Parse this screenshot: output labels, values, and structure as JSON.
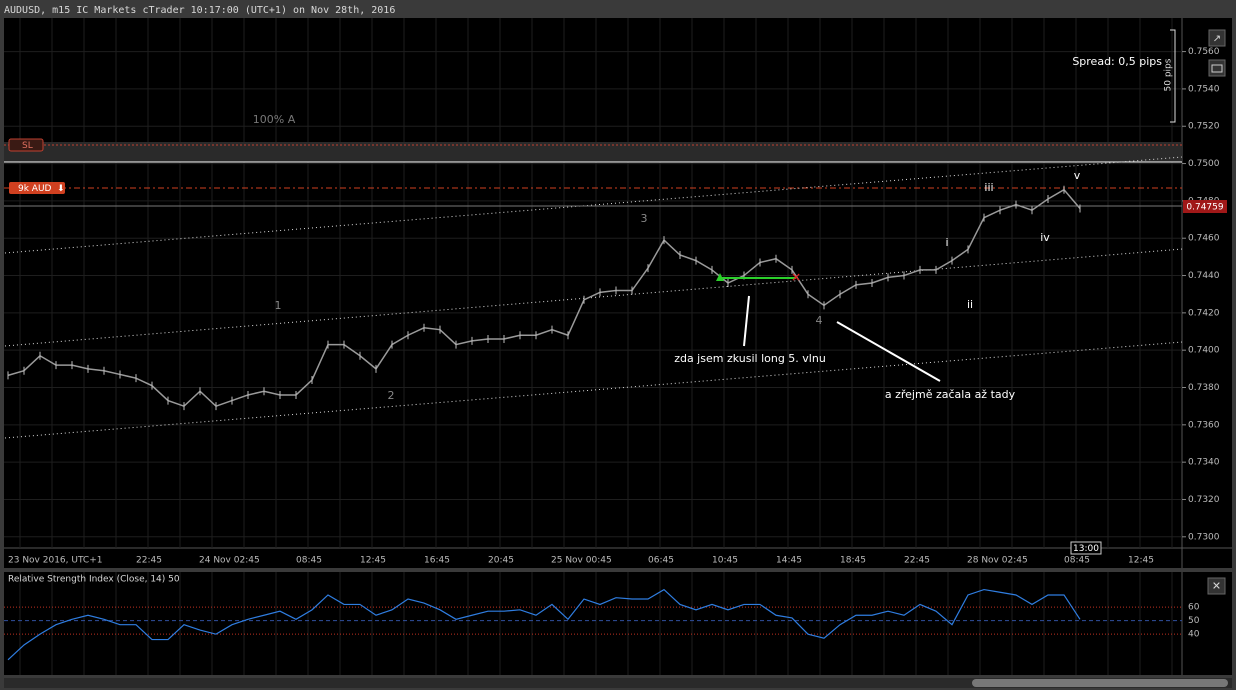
{
  "header": {
    "title": "AUDUSD, m15 IC Markets cTrader 10:17:00 (UTC+1) on Nov 28th, 2016"
  },
  "price_chart": {
    "ylim": [
      0.7294,
      0.7578
    ],
    "yticks": [
      {
        "value": 0.756,
        "label": "0.7560"
      },
      {
        "value": 0.754,
        "label": "0.7540"
      },
      {
        "value": 0.752,
        "label": "0.7520"
      },
      {
        "value": 0.75,
        "label": "0.7500"
      },
      {
        "value": 0.748,
        "label": "0.7480"
      },
      {
        "value": 0.746,
        "label": "0.7460"
      },
      {
        "value": 0.744,
        "label": "0.7440"
      },
      {
        "value": 0.742,
        "label": "0.7420"
      },
      {
        "value": 0.74,
        "label": "0.7400"
      },
      {
        "value": 0.738,
        "label": "0.7380"
      },
      {
        "value": 0.736,
        "label": "0.7360"
      },
      {
        "value": 0.734,
        "label": "0.7340"
      },
      {
        "value": 0.732,
        "label": "0.7320"
      },
      {
        "value": 0.73,
        "label": "0.7300"
      }
    ],
    "xticks": [
      "23 Nov 2016, UTC+1",
      "22:45",
      "24 Nov 02:45",
      "08:45",
      "12:45",
      "16:45",
      "20:45",
      "25 Nov 00:45",
      "06:45",
      "10:45",
      "14:45",
      "18:45",
      "22:45",
      "28 Nov 02:45",
      "08:45",
      "12:45"
    ],
    "closes": [
      0.73865,
      0.7389,
      0.7397,
      0.7392,
      0.7392,
      0.739,
      0.7389,
      0.7387,
      0.7385,
      0.7381,
      0.7373,
      0.737,
      0.7378,
      0.737,
      0.7373,
      0.7376,
      0.7378,
      0.7376,
      0.7376,
      0.7384,
      0.7403,
      0.7403,
      0.7397,
      0.739,
      0.7403,
      0.7408,
      0.7412,
      0.7411,
      0.7403,
      0.7405,
      0.7406,
      0.7406,
      0.7408,
      0.7408,
      0.7411,
      0.7408,
      0.7427,
      0.7431,
      0.7432,
      0.7432,
      0.7444,
      0.7459,
      0.7451,
      0.7448,
      0.7443,
      0.7436,
      0.744,
      0.7447,
      0.7449,
      0.7443,
      0.743,
      0.7424,
      0.743,
      0.7435,
      0.7436,
      0.7439,
      0.744,
      0.7443,
      0.7443,
      0.7448,
      0.7454,
      0.7471,
      0.7475,
      0.7478,
      0.7475,
      0.7481,
      0.7486,
      0.74759
    ],
    "current_price": 0.74759,
    "time_marker": "13:00",
    "spread": "Spread: 0,5 pips",
    "scale_label": "50 pips",
    "watermark": "100% A",
    "sl_tag": "SL",
    "position_tag": "9k AUD",
    "waves": [
      "1",
      "2",
      "3",
      "4",
      "i",
      "ii",
      "iii",
      "iv",
      "v"
    ],
    "annotations": [
      "zda jsem zkusil long 5. vlnu",
      "a zřejmě začala až tady"
    ]
  },
  "rsi": {
    "title": "Relative Strength Index (Close, 14) 50",
    "ylim": [
      12,
      86
    ],
    "yticks": [
      60,
      50,
      40
    ],
    "values": [
      21,
      32,
      40,
      47,
      51,
      54,
      51,
      47,
      47,
      36,
      36,
      47,
      43,
      40,
      47,
      51,
      54,
      57,
      51,
      58,
      69,
      62,
      62,
      54,
      58,
      66,
      63,
      58,
      51,
      54,
      57,
      57,
      58,
      54,
      62,
      51,
      66,
      62,
      67,
      66,
      66,
      73,
      62,
      58,
      62,
      58,
      62,
      62,
      54,
      52,
      40,
      37,
      47,
      54,
      54,
      57,
      54,
      62,
      57,
      47,
      69,
      73,
      71,
      69,
      62,
      69,
      69,
      51
    ]
  }
}
